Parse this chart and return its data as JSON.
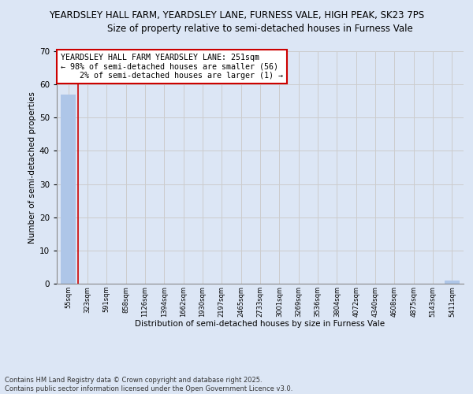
{
  "title": "YEARDSLEY HALL FARM, YEARDSLEY LANE, FURNESS VALE, HIGH PEAK, SK23 7PS",
  "subtitle": "Size of property relative to semi-detached houses in Furness Vale",
  "xlabel": "Distribution of semi-detached houses by size in Furness Vale",
  "ylabel": "Number of semi-detached properties",
  "categories": [
    "55sqm",
    "323sqm",
    "591sqm",
    "858sqm",
    "1126sqm",
    "1394sqm",
    "1662sqm",
    "1930sqm",
    "2197sqm",
    "2465sqm",
    "2733sqm",
    "3001sqm",
    "3269sqm",
    "3536sqm",
    "3804sqm",
    "4072sqm",
    "4340sqm",
    "4608sqm",
    "4875sqm",
    "5143sqm",
    "5411sqm"
  ],
  "values": [
    57,
    0,
    0,
    0,
    0,
    0,
    0,
    0,
    0,
    0,
    0,
    0,
    0,
    0,
    0,
    0,
    0,
    0,
    0,
    0,
    1
  ],
  "bar_color": "#aec6e8",
  "property_line_color": "#cc0000",
  "annotation_text": "YEARDSLEY HALL FARM YEARDSLEY LANE: 251sqm\n← 98% of semi-detached houses are smaller (56)\n    2% of semi-detached houses are larger (1) →",
  "annotation_box_color": "#ffffff",
  "annotation_border_color": "#cc0000",
  "ylim": [
    0,
    70
  ],
  "yticks": [
    0,
    10,
    20,
    30,
    40,
    50,
    60,
    70
  ],
  "grid_color": "#cccccc",
  "footer_line1": "Contains HM Land Registry data © Crown copyright and database right 2025.",
  "footer_line2": "Contains public sector information licensed under the Open Government Licence v3.0.",
  "background_color": "#dce6f5",
  "plot_bg_color": "#dce6f5",
  "title_fontsize": 8.5,
  "subtitle_fontsize": 8.5
}
